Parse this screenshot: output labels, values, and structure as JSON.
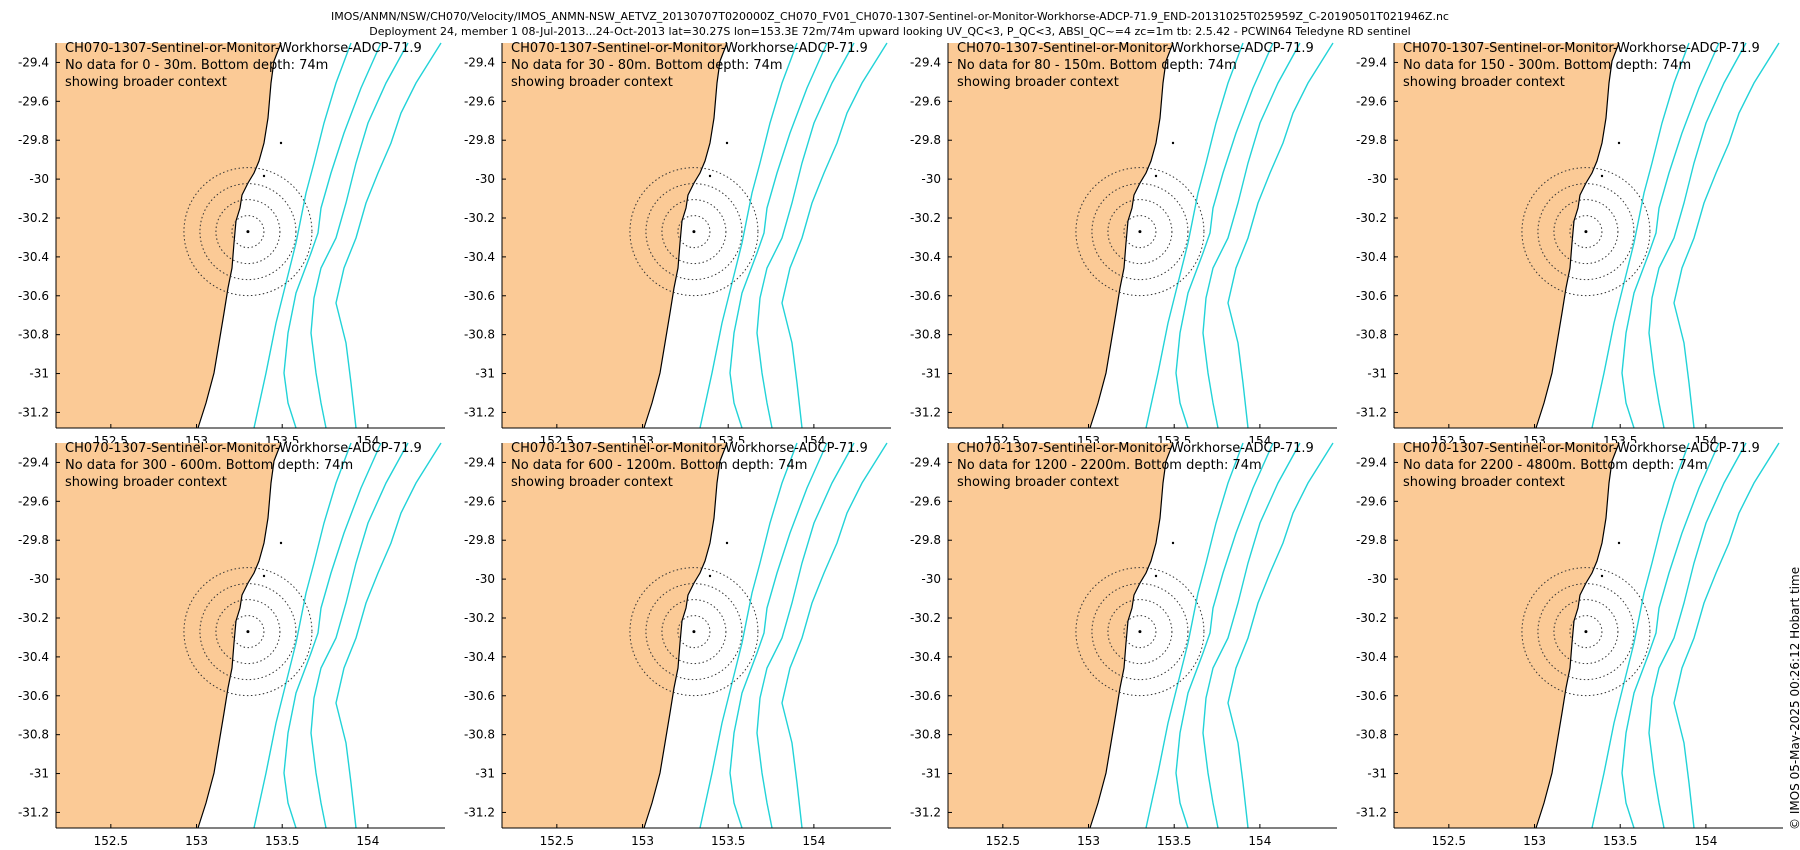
{
  "title": {
    "line1": "IMOS/ANMN/NSW/CH070/Velocity/IMOS_ANMN-NSW_AETVZ_20130707T020000Z_CH070_FV01_CH070-1307-Sentinel-or-Monitor-Workhorse-ADCP-71.9_END-20131025T025959Z_C-20190501T021946Z.nc",
    "line2": "Deployment 24, member 1 08-Jul-2013...24-Oct-2013 lat=30.27S lon=153.3E 72m/74m upward looking UV_QC<3, P_QC<3, ABSI_QC~=4 zc=1m tb: 2.5.42 - PCWIN64 Teledyne RD sentinel"
  },
  "footer": "© IMOS 05-May-2025 00:26:12 Hobart time",
  "colors": {
    "land": "#fbca96",
    "contour": "#22d3d8",
    "coast": "#000000",
    "rings": "#333333"
  },
  "map": {
    "lon_range": [
      152.18,
      154.45
    ],
    "lat_range": [
      -31.28,
      -29.3
    ],
    "yticks": [
      "-29.4",
      "-29.6",
      "-29.8",
      "-30",
      "-30.2",
      "-30.4",
      "-30.6",
      "-30.8",
      "-31",
      "-31.2"
    ],
    "xticks": [
      "152.5",
      "153",
      "153.5",
      "154"
    ],
    "mooring": {
      "lon": 153.3,
      "lat": -30.27
    }
  },
  "panels": [
    {
      "instrument": "CH070-1307-Sentinel-or-Monitor-Workhorse-ADCP-71.9",
      "message": "No data for 0 - 30m. Bottom depth: 74m",
      "note": "showing broader context"
    },
    {
      "instrument": "CH070-1307-Sentinel-or-Monitor-Workhorse-ADCP-71.9",
      "message": "No data for 30 - 80m. Bottom depth: 74m",
      "note": "showing broader context"
    },
    {
      "instrument": "CH070-1307-Sentinel-or-Monitor-Workhorse-ADCP-71.9",
      "message": "No data for 80 - 150m. Bottom depth: 74m",
      "note": "showing broader context"
    },
    {
      "instrument": "CH070-1307-Sentinel-or-Monitor-Workhorse-ADCP-71.9",
      "message": "No data for 150 - 300m. Bottom depth: 74m",
      "note": "showing broader context"
    },
    {
      "instrument": "CH070-1307-Sentinel-or-Monitor-Workhorse-ADCP-71.9",
      "message": "No data for 300 - 600m. Bottom depth: 74m",
      "note": "showing broader context"
    },
    {
      "instrument": "CH070-1307-Sentinel-or-Monitor-Workhorse-ADCP-71.9",
      "message": "No data for 600 - 1200m. Bottom depth: 74m",
      "note": "showing broader context"
    },
    {
      "instrument": "CH070-1307-Sentinel-or-Monitor-Workhorse-ADCP-71.9",
      "message": "No data for 1200 - 2200m. Bottom depth: 74m",
      "note": "showing broader context"
    },
    {
      "instrument": "CH070-1307-Sentinel-or-Monitor-Workhorse-ADCP-71.9",
      "message": "No data for 2200 - 4800m. Bottom depth: 74m",
      "note": "showing broader context"
    }
  ]
}
